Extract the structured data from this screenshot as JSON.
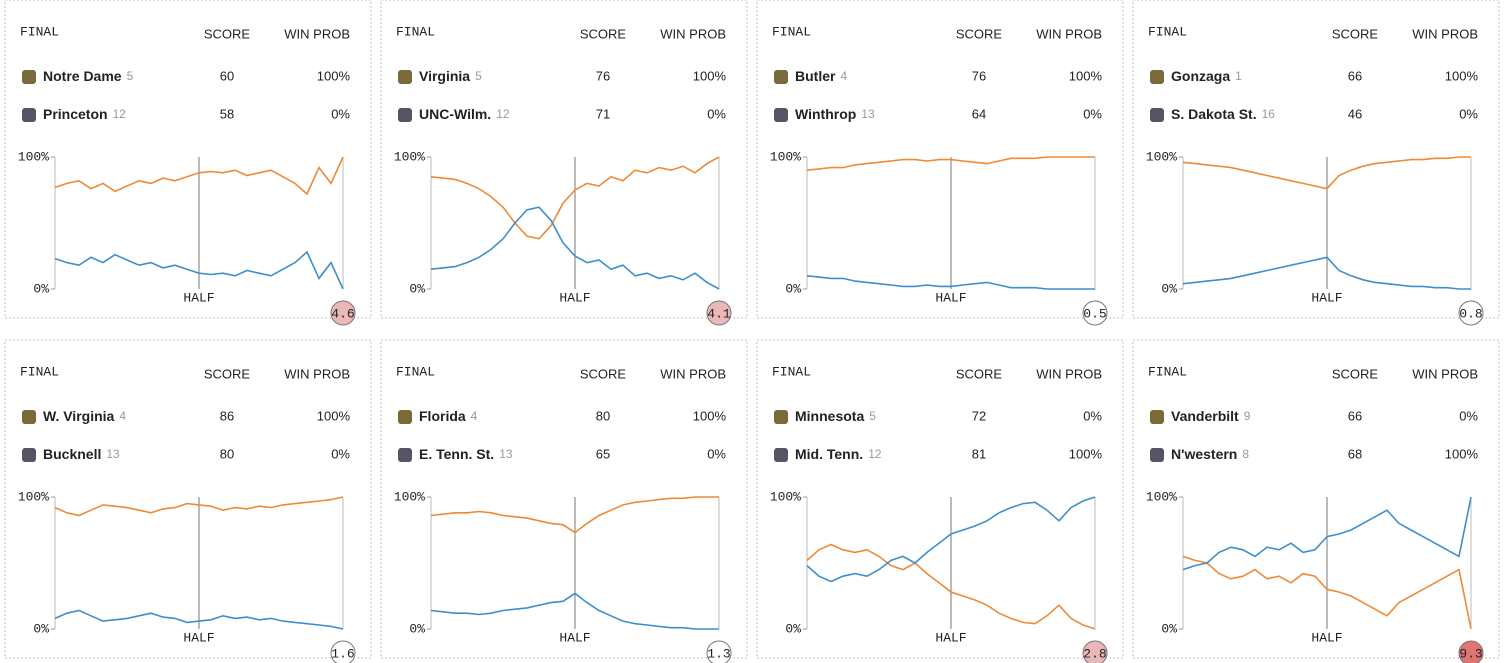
{
  "chart_data": [
    {
      "type": "line",
      "status": "FINAL",
      "score_label": "SCORE",
      "prob_label": "WIN PROB",
      "teams": [
        {
          "name": "Notre Dame",
          "seed": 5,
          "score": 60,
          "win_prob": "100%"
        },
        {
          "name": "Princeton",
          "seed": 12,
          "score": 58,
          "win_prob": "0%"
        }
      ],
      "ylim": [
        0,
        100
      ],
      "yticks": [
        {
          "value": 0,
          "label": "0%"
        },
        {
          "value": 100,
          "label": "100%"
        }
      ],
      "annotation": "HALF",
      "excitement": 4.6,
      "excitement_color": "#eab8b8",
      "series": [
        {
          "color": "#ee8a35",
          "values": [
            77,
            80,
            82,
            76,
            80,
            74,
            78,
            82,
            80,
            84,
            82,
            85,
            88,
            89,
            88,
            90,
            86,
            88,
            90,
            85,
            80,
            72,
            92,
            80,
            100
          ]
        },
        {
          "color": "#3d8fcc",
          "values": [
            23,
            20,
            18,
            24,
            20,
            26,
            22,
            18,
            20,
            16,
            18,
            15,
            12,
            11,
            12,
            10,
            14,
            12,
            10,
            15,
            20,
            28,
            8,
            20,
            0
          ]
        }
      ]
    },
    {
      "type": "line",
      "status": "FINAL",
      "score_label": "SCORE",
      "prob_label": "WIN PROB",
      "teams": [
        {
          "name": "Virginia",
          "seed": 5,
          "score": 76,
          "win_prob": "100%"
        },
        {
          "name": "UNC-Wilm.",
          "seed": 12,
          "score": 71,
          "win_prob": "0%"
        }
      ],
      "ylim": [
        0,
        100
      ],
      "yticks": [
        {
          "value": 0,
          "label": "0%"
        },
        {
          "value": 100,
          "label": "100%"
        }
      ],
      "annotation": "HALF",
      "excitement": 4.1,
      "excitement_color": "#eab8b8",
      "series": [
        {
          "color": "#ee8a35",
          "values": [
            85,
            84,
            83,
            80,
            76,
            70,
            62,
            50,
            40,
            38,
            48,
            65,
            75,
            80,
            78,
            85,
            82,
            90,
            88,
            92,
            90,
            93,
            88,
            95,
            100
          ]
        },
        {
          "color": "#3d8fcc",
          "values": [
            15,
            16,
            17,
            20,
            24,
            30,
            38,
            50,
            60,
            62,
            52,
            35,
            25,
            20,
            22,
            15,
            18,
            10,
            12,
            8,
            10,
            7,
            12,
            5,
            0
          ]
        }
      ]
    },
    {
      "type": "line",
      "status": "FINAL",
      "score_label": "SCORE",
      "prob_label": "WIN PROB",
      "teams": [
        {
          "name": "Butler",
          "seed": 4,
          "score": 76,
          "win_prob": "100%"
        },
        {
          "name": "Winthrop",
          "seed": 13,
          "score": 64,
          "win_prob": "0%"
        }
      ],
      "ylim": [
        0,
        100
      ],
      "yticks": [
        {
          "value": 0,
          "label": "0%"
        },
        {
          "value": 100,
          "label": "100%"
        }
      ],
      "annotation": "HALF",
      "excitement": 0.5,
      "excitement_color": "#ffffff",
      "series": [
        {
          "color": "#ee8a35",
          "values": [
            90,
            91,
            92,
            92,
            94,
            95,
            96,
            97,
            98,
            98,
            97,
            98,
            98,
            97,
            96,
            95,
            97,
            99,
            99,
            99,
            100,
            100,
            100,
            100,
            100
          ]
        },
        {
          "color": "#3d8fcc",
          "values": [
            10,
            9,
            8,
            8,
            6,
            5,
            4,
            3,
            2,
            2,
            3,
            2,
            2,
            3,
            4,
            5,
            3,
            1,
            1,
            1,
            0,
            0,
            0,
            0,
            0
          ]
        }
      ]
    },
    {
      "type": "line",
      "status": "FINAL",
      "score_label": "SCORE",
      "prob_label": "WIN PROB",
      "teams": [
        {
          "name": "Gonzaga",
          "seed": 1,
          "score": 66,
          "win_prob": "100%"
        },
        {
          "name": "S. Dakota St.",
          "seed": 16,
          "score": 46,
          "win_prob": "0%"
        }
      ],
      "ylim": [
        0,
        100
      ],
      "yticks": [
        {
          "value": 0,
          "label": "0%"
        },
        {
          "value": 100,
          "label": "100%"
        }
      ],
      "annotation": "HALF",
      "excitement": 0.8,
      "excitement_color": "#ffffff",
      "series": [
        {
          "color": "#ee8a35",
          "values": [
            96,
            95,
            94,
            93,
            92,
            90,
            88,
            86,
            84,
            82,
            80,
            78,
            76,
            86,
            90,
            93,
            95,
            96,
            97,
            98,
            98,
            99,
            99,
            100,
            100
          ]
        },
        {
          "color": "#3d8fcc",
          "values": [
            4,
            5,
            6,
            7,
            8,
            10,
            12,
            14,
            16,
            18,
            20,
            22,
            24,
            14,
            10,
            7,
            5,
            4,
            3,
            2,
            2,
            1,
            1,
            0,
            0
          ]
        }
      ]
    },
    {
      "type": "line",
      "status": "FINAL",
      "score_label": "SCORE",
      "prob_label": "WIN PROB",
      "teams": [
        {
          "name": "W. Virginia",
          "seed": 4,
          "score": 86,
          "win_prob": "100%"
        },
        {
          "name": "Bucknell",
          "seed": 13,
          "score": 80,
          "win_prob": "0%"
        }
      ],
      "ylim": [
        0,
        100
      ],
      "yticks": [
        {
          "value": 0,
          "label": "0%"
        },
        {
          "value": 100,
          "label": "100%"
        }
      ],
      "annotation": "HALF",
      "excitement": 1.6,
      "excitement_color": "#ffffff",
      "series": [
        {
          "color": "#ee8a35",
          "values": [
            92,
            88,
            86,
            90,
            94,
            93,
            92,
            90,
            88,
            91,
            92,
            95,
            94,
            93,
            90,
            92,
            91,
            93,
            92,
            94,
            95,
            96,
            97,
            98,
            100
          ]
        },
        {
          "color": "#3d8fcc",
          "values": [
            8,
            12,
            14,
            10,
            6,
            7,
            8,
            10,
            12,
            9,
            8,
            5,
            6,
            7,
            10,
            8,
            9,
            7,
            8,
            6,
            5,
            4,
            3,
            2,
            0
          ]
        }
      ]
    },
    {
      "type": "line",
      "status": "FINAL",
      "score_label": "SCORE",
      "prob_label": "WIN PROB",
      "teams": [
        {
          "name": "Florida",
          "seed": 4,
          "score": 80,
          "win_prob": "100%"
        },
        {
          "name": "E. Tenn. St.",
          "seed": 13,
          "score": 65,
          "win_prob": "0%"
        }
      ],
      "ylim": [
        0,
        100
      ],
      "yticks": [
        {
          "value": 0,
          "label": "0%"
        },
        {
          "value": 100,
          "label": "100%"
        }
      ],
      "annotation": "HALF",
      "excitement": 1.3,
      "excitement_color": "#ffffff",
      "series": [
        {
          "color": "#ee8a35",
          "values": [
            86,
            87,
            88,
            88,
            89,
            88,
            86,
            85,
            84,
            82,
            80,
            79,
            73,
            80,
            86,
            90,
            94,
            96,
            97,
            98,
            99,
            99,
            100,
            100,
            100
          ]
        },
        {
          "color": "#3d8fcc",
          "values": [
            14,
            13,
            12,
            12,
            11,
            12,
            14,
            15,
            16,
            18,
            20,
            21,
            27,
            20,
            14,
            10,
            6,
            4,
            3,
            2,
            1,
            1,
            0,
            0,
            0
          ]
        }
      ]
    },
    {
      "type": "line",
      "status": "FINAL",
      "score_label": "SCORE",
      "prob_label": "WIN PROB",
      "teams": [
        {
          "name": "Minnesota",
          "seed": 5,
          "score": 72,
          "win_prob": "0%"
        },
        {
          "name": "Mid. Tenn.",
          "seed": 12,
          "score": 81,
          "win_prob": "100%"
        }
      ],
      "ylim": [
        0,
        100
      ],
      "yticks": [
        {
          "value": 0,
          "label": "0%"
        },
        {
          "value": 100,
          "label": "100%"
        }
      ],
      "annotation": "HALF",
      "excitement": 2.8,
      "excitement_color": "#eab8b8",
      "series": [
        {
          "color": "#ee8a35",
          "values": [
            52,
            60,
            64,
            60,
            58,
            60,
            55,
            48,
            45,
            50,
            42,
            35,
            28,
            25,
            22,
            18,
            12,
            8,
            5,
            4,
            10,
            18,
            8,
            3,
            0
          ]
        },
        {
          "color": "#3d8fcc",
          "values": [
            48,
            40,
            36,
            40,
            42,
            40,
            45,
            52,
            55,
            50,
            58,
            65,
            72,
            75,
            78,
            82,
            88,
            92,
            95,
            96,
            90,
            82,
            92,
            97,
            100
          ]
        }
      ]
    },
    {
      "type": "line",
      "status": "FINAL",
      "score_label": "SCORE",
      "prob_label": "WIN PROB",
      "teams": [
        {
          "name": "Vanderbilt",
          "seed": 9,
          "score": 66,
          "win_prob": "0%"
        },
        {
          "name": "N'western",
          "seed": 8,
          "score": 68,
          "win_prob": "100%"
        }
      ],
      "ylim": [
        0,
        100
      ],
      "yticks": [
        {
          "value": 0,
          "label": "0%"
        },
        {
          "value": 100,
          "label": "100%"
        }
      ],
      "annotation": "HALF",
      "excitement": 9.3,
      "excitement_color": "#e07474",
      "series": [
        {
          "color": "#ee8a35",
          "values": [
            55,
            52,
            50,
            42,
            38,
            40,
            45,
            38,
            40,
            35,
            42,
            40,
            30,
            28,
            25,
            20,
            15,
            10,
            20,
            25,
            30,
            35,
            40,
            45,
            0
          ]
        },
        {
          "color": "#3d8fcc",
          "values": [
            45,
            48,
            50,
            58,
            62,
            60,
            55,
            62,
            60,
            65,
            58,
            60,
            70,
            72,
            75,
            80,
            85,
            90,
            80,
            75,
            70,
            65,
            60,
            55,
            100
          ]
        }
      ]
    }
  ]
}
